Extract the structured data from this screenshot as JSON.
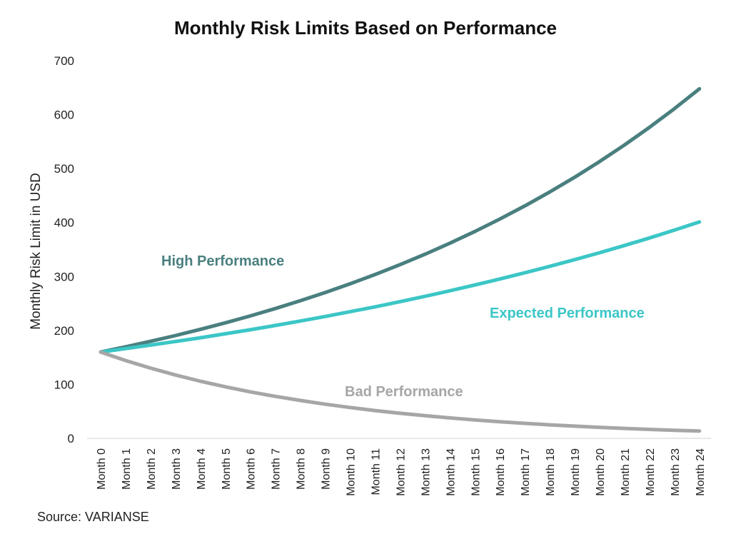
{
  "chart_data": {
    "type": "line",
    "title": "Monthly Risk Limits Based on Performance",
    "ylabel": "Monthly Risk Limit in USD",
    "xlabel": "",
    "ylim": [
      0,
      700
    ],
    "yticks": [
      "0",
      "100",
      "200",
      "300",
      "400",
      "500",
      "600",
      "700"
    ],
    "grid": false,
    "categories": [
      "Month 0",
      "Month 1",
      "Month 2",
      "Month 3",
      "Month 4",
      "Month 5",
      "Month 6",
      "Month 7",
      "Month 8",
      "Month 9",
      "Month 10",
      "Month 11",
      "Month 12",
      "Month 13",
      "Month 14",
      "Month 15",
      "Month 16",
      "Month 17",
      "Month 18",
      "Month 19",
      "Month 20",
      "Month 21",
      "Month 22",
      "Month 23",
      "Month 24"
    ],
    "series": [
      {
        "name": "High Performance",
        "color": "#4a7f7f",
        "values": [
          160,
          169.6,
          179.8,
          190.6,
          202.0,
          214.1,
          227.0,
          240.6,
          255.0,
          270.3,
          286.5,
          303.7,
          322.0,
          341.3,
          361.8,
          383.5,
          406.5,
          430.9,
          456.7,
          484.1,
          513.2,
          544.0,
          576.6,
          611.2,
          647.9
        ]
      },
      {
        "name": "Expected Performance",
        "color": "#3cc6c6",
        "values": [
          160,
          166.3,
          172.8,
          179.5,
          186.5,
          193.8,
          201.3,
          209.2,
          217.4,
          225.9,
          234.7,
          243.8,
          253.3,
          263.2,
          273.5,
          284.2,
          295.3,
          306.8,
          318.8,
          331.2,
          344.1,
          357.6,
          371.5,
          386.0,
          401.1
        ]
      },
      {
        "name": "Bad Performance",
        "color": "#a6a6a6",
        "values": [
          160,
          144.3,
          130.2,
          117.4,
          105.9,
          95.6,
          86.2,
          77.8,
          70.2,
          63.3,
          57.1,
          51.5,
          46.5,
          41.9,
          37.8,
          34.1,
          30.8,
          27.8,
          25.0,
          22.6,
          20.4,
          18.4,
          16.6,
          15.0,
          13.5
        ]
      }
    ],
    "series_label_positions": [
      "upper-left",
      "right",
      "bottom-center"
    ]
  },
  "source": "Source: VARIANSE"
}
